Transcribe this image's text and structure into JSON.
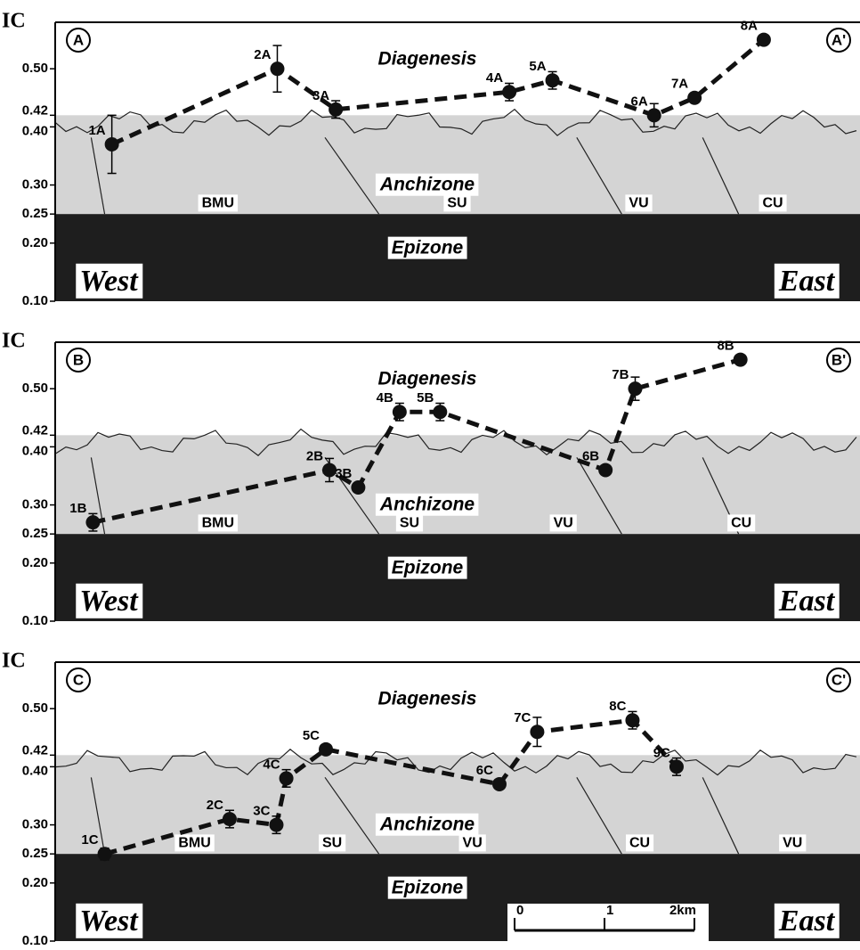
{
  "chart_data": [
    {
      "type": "scatter",
      "y_label": "IC",
      "section_start": "A",
      "section_end": "A'",
      "west": "West",
      "east": "East",
      "zones": [
        {
          "label": "Diagenesis",
          "min": 0.42
        },
        {
          "label": "Anchizone",
          "min": 0.25,
          "max": 0.42
        },
        {
          "label": "Epizone",
          "max": 0.25
        }
      ],
      "units": [
        {
          "label": "BMU",
          "x": 1.81
        },
        {
          "label": "SU",
          "x": 4.47
        },
        {
          "label": "VU",
          "x": 6.49
        },
        {
          "label": "CU",
          "x": 7.98
        }
      ],
      "labels": [
        "1A",
        "2A",
        "3A",
        "4A",
        "5A",
        "6A",
        "7A",
        "8A"
      ],
      "x": [
        0.63,
        2.47,
        3.12,
        5.05,
        5.53,
        6.66,
        7.11,
        7.88
      ],
      "values": [
        0.37,
        0.5,
        0.43,
        0.46,
        0.48,
        0.42,
        0.45,
        0.55
      ],
      "errors": [
        0.05,
        0.04,
        0.015,
        0.015,
        0.015,
        0.02,
        null,
        null
      ],
      "xlim": [
        0,
        8.95
      ],
      "ylim": [
        0.1,
        0.58
      ],
      "yticks": [
        {
          "value": 0.1,
          "label": "0.10"
        },
        {
          "value": 0.2,
          "label": "0.20"
        },
        0.25,
        {
          "value": 0.3,
          "label": "0.30"
        },
        {
          "value": 0.4,
          "label": "0.40"
        },
        0.42,
        {
          "value": 0.5,
          "label": "0.50"
        }
      ]
    },
    {
      "type": "scatter",
      "y_label": "IC",
      "section_start": "B",
      "section_end": "B'",
      "west": "West",
      "east": "East",
      "zones": [
        {
          "label": "Diagenesis",
          "min": 0.42
        },
        {
          "label": "Anchizone",
          "min": 0.25,
          "max": 0.42
        },
        {
          "label": "Epizone",
          "max": 0.25
        }
      ],
      "units": [
        {
          "label": "BMU",
          "x": 1.81
        },
        {
          "label": "SU",
          "x": 3.94
        },
        {
          "label": "VU",
          "x": 5.65
        },
        {
          "label": "CU",
          "x": 7.63
        }
      ],
      "labels": [
        "1B",
        "2B",
        "3B",
        "4B",
        "5B",
        "6B",
        "7B",
        "8B"
      ],
      "x": [
        0.42,
        3.05,
        3.37,
        3.83,
        4.28,
        6.12,
        6.45,
        7.62
      ],
      "values": [
        0.27,
        0.36,
        0.33,
        0.46,
        0.46,
        0.36,
        0.5,
        0.55
      ],
      "errors": [
        0.015,
        0.02,
        null,
        0.015,
        0.015,
        null,
        0.02,
        null
      ],
      "xlim": [
        0,
        8.95
      ],
      "ylim": [
        0.1,
        0.58
      ],
      "yticks": [
        {
          "value": 0.1,
          "label": "0.10"
        },
        {
          "value": 0.2,
          "label": "0.20"
        },
        0.25,
        {
          "value": 0.3,
          "label": "0.30"
        },
        {
          "value": 0.4,
          "label": "0.40"
        },
        0.42,
        {
          "value": 0.5,
          "label": "0.50"
        }
      ]
    },
    {
      "type": "scatter",
      "y_label": "IC",
      "section_start": "C",
      "section_end": "C'",
      "west": "West",
      "east": "East",
      "zones": [
        {
          "label": "Diagenesis",
          "min": 0.42
        },
        {
          "label": "Anchizone",
          "min": 0.25,
          "max": 0.42
        },
        {
          "label": "Epizone",
          "max": 0.25
        }
      ],
      "units": [
        {
          "label": "BMU",
          "x": 1.55
        },
        {
          "label": "SU",
          "x": 3.08
        },
        {
          "label": "VU",
          "x": 4.64
        },
        {
          "label": "CU",
          "x": 6.5
        },
        {
          "label": "VU",
          "x": 8.2
        }
      ],
      "labels": [
        "1C",
        "2C",
        "3C",
        "4C",
        "5C",
        "6C",
        "7C",
        "8C",
        "9C"
      ],
      "x": [
        0.55,
        1.94,
        2.46,
        2.57,
        3.01,
        4.94,
        5.36,
        6.42,
        6.91
      ],
      "values": [
        0.25,
        0.31,
        0.3,
        0.38,
        0.43,
        0.37,
        0.46,
        0.48,
        0.4
      ],
      "errors": [
        0.01,
        0.015,
        0.015,
        0.015,
        null,
        null,
        0.025,
        0.015,
        0.015
      ],
      "xlim": [
        0,
        8.95
      ],
      "ylim": [
        0.1,
        0.58
      ],
      "yticks": [
        {
          "value": 0.1,
          "label": "0.10"
        },
        {
          "value": 0.2,
          "label": "0.20"
        },
        0.25,
        {
          "value": 0.3,
          "label": "0.30"
        },
        {
          "value": 0.4,
          "label": "0.40"
        },
        0.42,
        {
          "value": 0.5,
          "label": "0.50"
        }
      ],
      "scale_bar": {
        "ticks": [
          0,
          1,
          {
            "value": 2,
            "label": "2km"
          }
        ]
      }
    }
  ]
}
